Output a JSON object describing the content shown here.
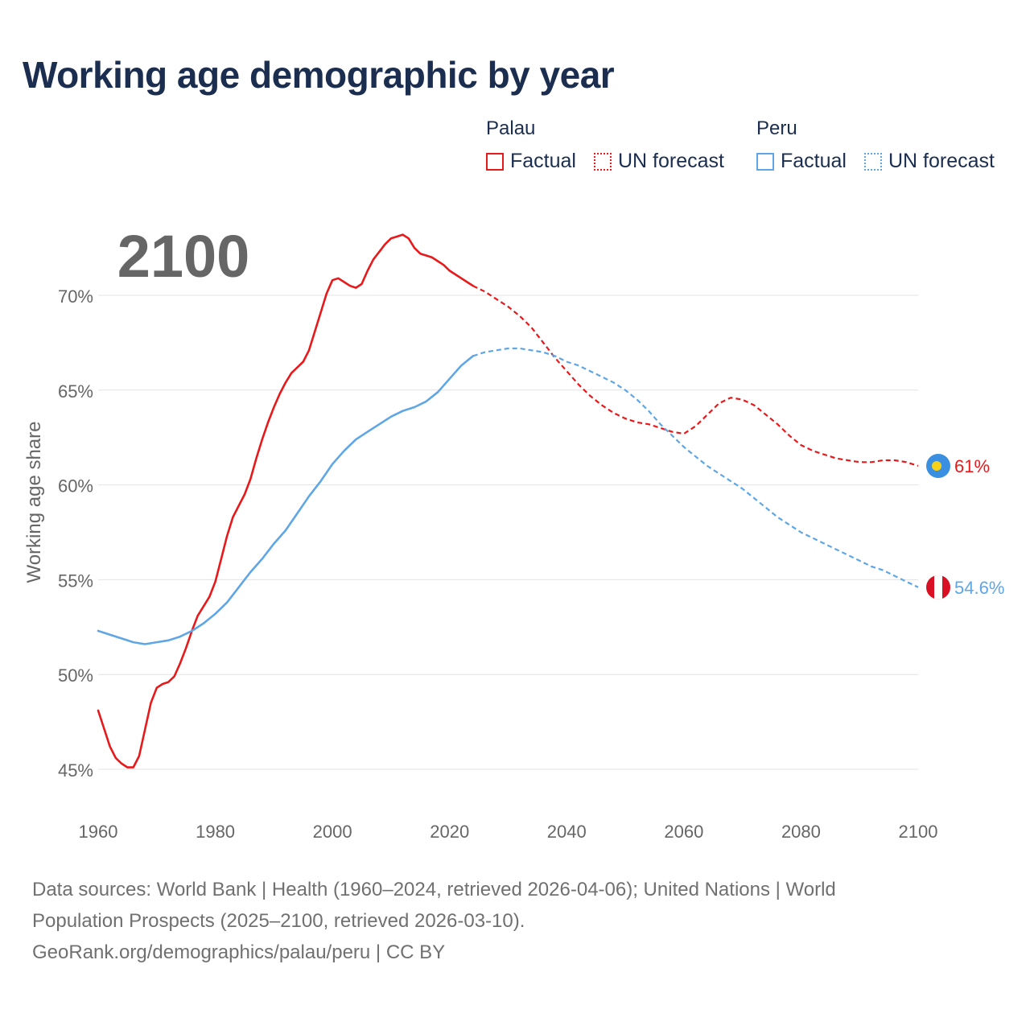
{
  "title": "Working age demographic by year",
  "colors": {
    "palau": "#e8191b",
    "peru": "#5ea6e6",
    "grid": "#e3e3e3",
    "year_label": "#c0c0c0",
    "text": "#1b2e4f",
    "muted": "#707070"
  },
  "legend": {
    "groups": [
      {
        "country": "Palau",
        "factual_label": "Factual",
        "forecast_label": "UN forecast"
      },
      {
        "country": "Peru",
        "factual_label": "Factual",
        "forecast_label": "UN forecast"
      }
    ]
  },
  "chart_data": {
    "type": "line",
    "title": "Working age demographic by year",
    "xlabel": "",
    "ylabel": "Working age share",
    "xlim": [
      1960,
      2100
    ],
    "ylim": [
      44,
      74
    ],
    "x_ticks": [
      1960,
      1980,
      2000,
      2020,
      2040,
      2060,
      2080,
      2100
    ],
    "y_ticks": [
      45,
      50,
      55,
      60,
      65,
      70
    ],
    "y_tick_labels": [
      "45%",
      "50%",
      "55%",
      "60%",
      "65%",
      "70%"
    ],
    "current_year_label": "2100",
    "forecast_start": 2024,
    "series": [
      {
        "name": "Palau",
        "end_label": "61%",
        "points": [
          [
            1960,
            48.1
          ],
          [
            1962,
            46.2
          ],
          [
            1963,
            45.6
          ],
          [
            1964,
            45.3
          ],
          [
            1965,
            45.1
          ],
          [
            1966,
            45.1
          ],
          [
            1967,
            45.7
          ],
          [
            1968,
            47.1
          ],
          [
            1969,
            48.5
          ],
          [
            1970,
            49.3
          ],
          [
            1971,
            49.5
          ],
          [
            1972,
            49.6
          ],
          [
            1973,
            49.9
          ],
          [
            1974,
            50.6
          ],
          [
            1975,
            51.4
          ],
          [
            1976,
            52.3
          ],
          [
            1977,
            53.1
          ],
          [
            1978,
            53.6
          ],
          [
            1979,
            54.1
          ],
          [
            1980,
            54.9
          ],
          [
            1981,
            56.1
          ],
          [
            1982,
            57.3
          ],
          [
            1983,
            58.3
          ],
          [
            1984,
            58.9
          ],
          [
            1985,
            59.5
          ],
          [
            1986,
            60.3
          ],
          [
            1987,
            61.4
          ],
          [
            1988,
            62.4
          ],
          [
            1989,
            63.3
          ],
          [
            1990,
            64.1
          ],
          [
            1991,
            64.8
          ],
          [
            1992,
            65.4
          ],
          [
            1993,
            65.9
          ],
          [
            1994,
            66.2
          ],
          [
            1995,
            66.5
          ],
          [
            1996,
            67.1
          ],
          [
            1997,
            68.1
          ],
          [
            1998,
            69.1
          ],
          [
            1999,
            70.1
          ],
          [
            2000,
            70.8
          ],
          [
            2001,
            70.9
          ],
          [
            2002,
            70.7
          ],
          [
            2003,
            70.5
          ],
          [
            2004,
            70.4
          ],
          [
            2005,
            70.6
          ],
          [
            2006,
            71.3
          ],
          [
            2007,
            71.9
          ],
          [
            2008,
            72.3
          ],
          [
            2009,
            72.7
          ],
          [
            2010,
            73.0
          ],
          [
            2011,
            73.1
          ],
          [
            2012,
            73.2
          ],
          [
            2013,
            73.0
          ],
          [
            2014,
            72.5
          ],
          [
            2015,
            72.2
          ],
          [
            2016,
            72.1
          ],
          [
            2017,
            72.0
          ],
          [
            2018,
            71.8
          ],
          [
            2019,
            71.6
          ],
          [
            2020,
            71.3
          ],
          [
            2021,
            71.1
          ],
          [
            2022,
            70.9
          ],
          [
            2023,
            70.7
          ],
          [
            2024,
            70.5
          ],
          [
            2026,
            70.2
          ],
          [
            2028,
            69.8
          ],
          [
            2030,
            69.4
          ],
          [
            2032,
            68.9
          ],
          [
            2034,
            68.3
          ],
          [
            2036,
            67.5
          ],
          [
            2038,
            66.7
          ],
          [
            2040,
            66.0
          ],
          [
            2042,
            65.3
          ],
          [
            2044,
            64.7
          ],
          [
            2046,
            64.2
          ],
          [
            2048,
            63.8
          ],
          [
            2050,
            63.5
          ],
          [
            2052,
            63.3
          ],
          [
            2054,
            63.2
          ],
          [
            2056,
            63.0
          ],
          [
            2058,
            62.8
          ],
          [
            2060,
            62.7
          ],
          [
            2062,
            63.1
          ],
          [
            2064,
            63.7
          ],
          [
            2066,
            64.3
          ],
          [
            2068,
            64.6
          ],
          [
            2070,
            64.5
          ],
          [
            2072,
            64.2
          ],
          [
            2074,
            63.7
          ],
          [
            2076,
            63.2
          ],
          [
            2078,
            62.6
          ],
          [
            2080,
            62.1
          ],
          [
            2082,
            61.8
          ],
          [
            2084,
            61.6
          ],
          [
            2086,
            61.4
          ],
          [
            2088,
            61.3
          ],
          [
            2090,
            61.2
          ],
          [
            2092,
            61.2
          ],
          [
            2094,
            61.3
          ],
          [
            2096,
            61.3
          ],
          [
            2098,
            61.2
          ],
          [
            2100,
            61.0
          ]
        ]
      },
      {
        "name": "Peru",
        "end_label": "54.6%",
        "points": [
          [
            1960,
            52.3
          ],
          [
            1962,
            52.1
          ],
          [
            1964,
            51.9
          ],
          [
            1966,
            51.7
          ],
          [
            1968,
            51.6
          ],
          [
            1970,
            51.7
          ],
          [
            1972,
            51.8
          ],
          [
            1974,
            52.0
          ],
          [
            1976,
            52.3
          ],
          [
            1978,
            52.7
          ],
          [
            1980,
            53.2
          ],
          [
            1982,
            53.8
          ],
          [
            1984,
            54.6
          ],
          [
            1986,
            55.4
          ],
          [
            1988,
            56.1
          ],
          [
            1990,
            56.9
          ],
          [
            1992,
            57.6
          ],
          [
            1994,
            58.5
          ],
          [
            1996,
            59.4
          ],
          [
            1998,
            60.2
          ],
          [
            2000,
            61.1
          ],
          [
            2002,
            61.8
          ],
          [
            2004,
            62.4
          ],
          [
            2006,
            62.8
          ],
          [
            2008,
            63.2
          ],
          [
            2010,
            63.6
          ],
          [
            2012,
            63.9
          ],
          [
            2014,
            64.1
          ],
          [
            2016,
            64.4
          ],
          [
            2018,
            64.9
          ],
          [
            2020,
            65.6
          ],
          [
            2022,
            66.3
          ],
          [
            2024,
            66.8
          ],
          [
            2026,
            67.0
          ],
          [
            2028,
            67.1
          ],
          [
            2030,
            67.2
          ],
          [
            2032,
            67.2
          ],
          [
            2034,
            67.1
          ],
          [
            2036,
            67.0
          ],
          [
            2038,
            66.8
          ],
          [
            2040,
            66.5
          ],
          [
            2042,
            66.3
          ],
          [
            2044,
            66.0
          ],
          [
            2046,
            65.7
          ],
          [
            2048,
            65.4
          ],
          [
            2050,
            65.0
          ],
          [
            2052,
            64.5
          ],
          [
            2054,
            63.9
          ],
          [
            2056,
            63.2
          ],
          [
            2058,
            62.6
          ],
          [
            2060,
            62.0
          ],
          [
            2062,
            61.5
          ],
          [
            2064,
            61.0
          ],
          [
            2066,
            60.6
          ],
          [
            2068,
            60.2
          ],
          [
            2070,
            59.8
          ],
          [
            2072,
            59.3
          ],
          [
            2074,
            58.8
          ],
          [
            2076,
            58.3
          ],
          [
            2078,
            57.9
          ],
          [
            2080,
            57.5
          ],
          [
            2082,
            57.2
          ],
          [
            2084,
            56.9
          ],
          [
            2086,
            56.6
          ],
          [
            2088,
            56.3
          ],
          [
            2090,
            56.0
          ],
          [
            2092,
            55.7
          ],
          [
            2094,
            55.5
          ],
          [
            2096,
            55.2
          ],
          [
            2098,
            54.9
          ],
          [
            2100,
            54.6
          ]
        ]
      }
    ]
  },
  "sources": {
    "line1": "Data sources: World Bank | Health (1960–2024, retrieved 2026-04-06); United Nations | World",
    "line2": "Population Prospects (2025–2100, retrieved 2026-03-10).",
    "line3": "GeoRank.org/demographics/palau/peru | CC BY"
  }
}
